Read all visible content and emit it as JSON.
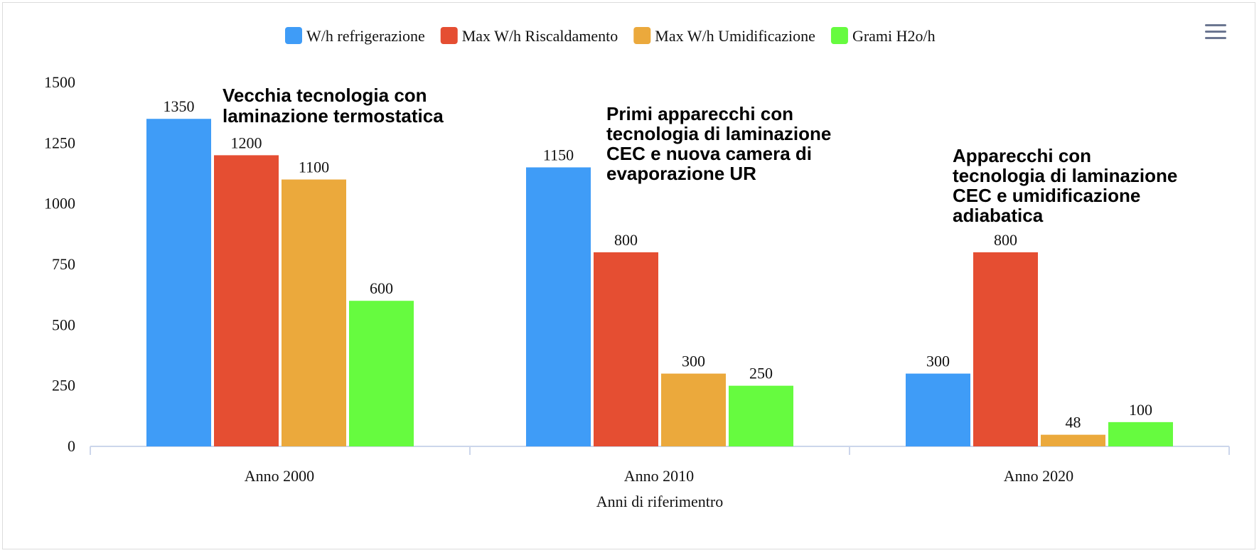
{
  "menu": {
    "icon": "hamburger-menu-icon"
  },
  "chart_data": {
    "type": "bar",
    "categories": [
      "Anno 2000",
      "Anno 2010",
      "Anno 2020"
    ],
    "series": [
      {
        "name": "W/h refrigerazione",
        "values": [
          1350,
          1150,
          300
        ],
        "color": "#3f9cf7"
      },
      {
        "name": "Max W/h Riscaldamento",
        "values": [
          1200,
          800,
          800
        ],
        "color": "#e54e32"
      },
      {
        "name": "Max W/h Umidificazione",
        "values": [
          1100,
          300,
          48
        ],
        "color": "#eba93c"
      },
      {
        "name": "Grami H2o/h",
        "values": [
          600,
          250,
          100
        ],
        "color": "#66fb3f"
      }
    ],
    "title": "",
    "xlabel": "Anni di riferimentro",
    "ylabel": "",
    "ylim": [
      0,
      1500
    ],
    "yticks": [
      0,
      250,
      500,
      750,
      1000,
      1250,
      1500
    ],
    "grid": false,
    "legend_position": "top-center",
    "annotations": [
      {
        "category": "Anno 2000",
        "lines": [
          "Vecchia tecnologia con",
          " laminazione termostatica"
        ]
      },
      {
        "category": "Anno 2010",
        "lines": [
          "Primi apparecchi con",
          "tecnologia di laminazione",
          "CEC e nuova camera di",
          "evaporazione UR"
        ]
      },
      {
        "category": "Anno 2020",
        "lines": [
          "Apparecchi con",
          "tecnologia di laminazione",
          "CEC e umidificazione",
          "adiabatica"
        ]
      }
    ]
  }
}
